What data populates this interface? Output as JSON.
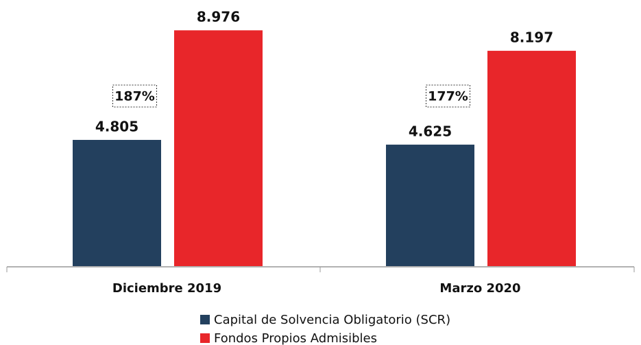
{
  "chart_data": {
    "type": "bar",
    "categories": [
      "Diciembre 2019",
      "Marzo 2020"
    ],
    "series": [
      {
        "name": "Capital de Solvencia Obligatorio (SCR)",
        "color": "#23405e",
        "values": [
          4.805,
          4.625
        ]
      },
      {
        "name": "Fondos Propios Admisibles",
        "color": "#e8262a",
        "values": [
          8.976,
          8.197
        ]
      }
    ],
    "annotations": [
      "187%",
      "177%"
    ]
  }
}
